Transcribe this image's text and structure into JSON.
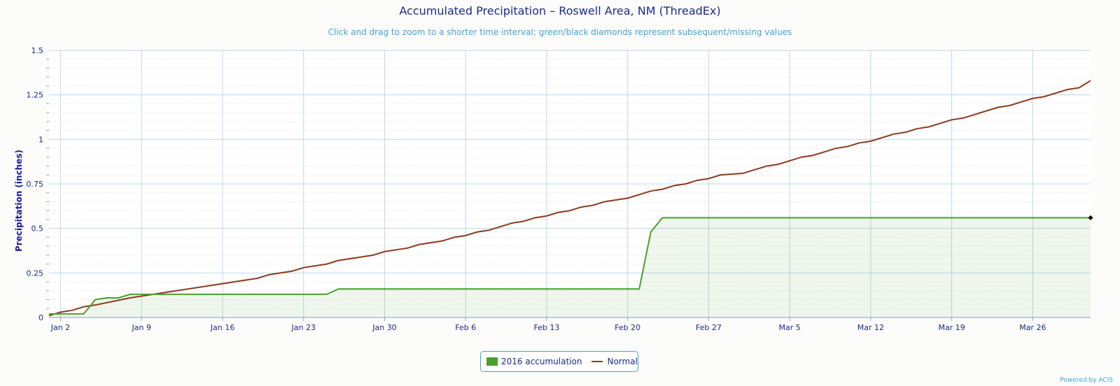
{
  "chart_data": {
    "type": "area",
    "title": "Accumulated Precipitation – Roswell Area, NM (ThreadEx)",
    "subtitle": "Click and drag to zoom to a shorter time interval; green/black diamonds represent subsequent/missing values",
    "ylabel": "Precipitation (inches)",
    "xlabel": "",
    "ylim": [
      0,
      1.5
    ],
    "yticks": [
      "0",
      "0.25",
      "0.5",
      "0.75",
      "1",
      "1.25",
      "1.5"
    ],
    "xlim": [
      "Jan 1",
      "Mar 31"
    ],
    "xtick_labels": [
      "Jan 2",
      "Jan 9",
      "Jan 16",
      "Jan 23",
      "Jan 30",
      "Feb 6",
      "Feb 13",
      "Feb 20",
      "Feb 27",
      "Mar 5",
      "Mar 12",
      "Mar 19",
      "Mar 26"
    ],
    "grid": true,
    "legend_position": "bottom-center",
    "series": [
      {
        "name": "2016 accumulation",
        "kind": "area",
        "color": "#4aa02c",
        "points": [
          [
            "Jan 1",
            0.02
          ],
          [
            "Jan 4",
            0.02
          ],
          [
            "Jan 5",
            0.1
          ],
          [
            "Jan 6",
            0.11
          ],
          [
            "Jan 7",
            0.11
          ],
          [
            "Jan 8",
            0.13
          ],
          [
            "Jan 25",
            0.13
          ],
          [
            "Jan 26",
            0.16
          ],
          [
            "Feb 21",
            0.16
          ],
          [
            "Feb 22",
            0.48
          ],
          [
            "Feb 23",
            0.56
          ],
          [
            "Mar 31",
            0.56
          ]
        ]
      },
      {
        "name": "Normal",
        "kind": "line",
        "color": "#8b3a1a",
        "points": [
          [
            "Jan 1",
            0.01
          ],
          [
            "Jan 2",
            0.03
          ],
          [
            "Jan 3",
            0.04
          ],
          [
            "Jan 4",
            0.06
          ],
          [
            "Jan 5",
            0.07
          ],
          [
            "Jan 8",
            0.11
          ],
          [
            "Jan 12",
            0.15
          ],
          [
            "Jan 16",
            0.19
          ],
          [
            "Jan 19",
            0.22
          ],
          [
            "Jan 20",
            0.24
          ],
          [
            "Jan 22",
            0.26
          ],
          [
            "Jan 23",
            0.28
          ],
          [
            "Jan 25",
            0.3
          ],
          [
            "Jan 26",
            0.32
          ],
          [
            "Jan 29",
            0.35
          ],
          [
            "Jan 30",
            0.37
          ],
          [
            "Feb 1",
            0.39
          ],
          [
            "Feb 2",
            0.41
          ],
          [
            "Feb 4",
            0.43
          ],
          [
            "Feb 5",
            0.45
          ],
          [
            "Feb 6",
            0.46
          ],
          [
            "Feb 7",
            0.48
          ],
          [
            "Feb 8",
            0.49
          ],
          [
            "Feb 10",
            0.53
          ],
          [
            "Feb 11",
            0.54
          ],
          [
            "Feb 12",
            0.56
          ],
          [
            "Feb 13",
            0.57
          ],
          [
            "Feb 14",
            0.59
          ],
          [
            "Feb 15",
            0.6
          ],
          [
            "Feb 16",
            0.62
          ],
          [
            "Feb 17",
            0.63
          ],
          [
            "Feb 18",
            0.65
          ],
          [
            "Feb 20",
            0.67
          ],
          [
            "Feb 21",
            0.69
          ],
          [
            "Feb 22",
            0.71
          ],
          [
            "Feb 23",
            0.72
          ],
          [
            "Feb 24",
            0.74
          ],
          [
            "Feb 25",
            0.75
          ],
          [
            "Feb 26",
            0.77
          ],
          [
            "Feb 27",
            0.78
          ],
          [
            "Feb 28",
            0.8
          ],
          [
            "Mar 1",
            0.81
          ],
          [
            "Mar 3",
            0.85
          ],
          [
            "Mar 4",
            0.86
          ],
          [
            "Mar 5",
            0.88
          ],
          [
            "Mar 6",
            0.9
          ],
          [
            "Mar 7",
            0.91
          ],
          [
            "Mar 8",
            0.93
          ],
          [
            "Mar 9",
            0.95
          ],
          [
            "Mar 10",
            0.96
          ],
          [
            "Mar 11",
            0.98
          ],
          [
            "Mar 12",
            0.99
          ],
          [
            "Mar 13",
            1.01
          ],
          [
            "Mar 14",
            1.03
          ],
          [
            "Mar 15",
            1.04
          ],
          [
            "Mar 16",
            1.06
          ],
          [
            "Mar 17",
            1.07
          ],
          [
            "Mar 18",
            1.09
          ],
          [
            "Mar 19",
            1.11
          ],
          [
            "Mar 20",
            1.12
          ],
          [
            "Mar 21",
            1.14
          ],
          [
            "Mar 23",
            1.18
          ],
          [
            "Mar 24",
            1.19
          ],
          [
            "Mar 25",
            1.21
          ],
          [
            "Mar 26",
            1.23
          ],
          [
            "Mar 27",
            1.24
          ],
          [
            "Mar 28",
            1.26
          ],
          [
            "Mar 29",
            1.28
          ],
          [
            "Mar 30",
            1.29
          ],
          [
            "Mar 31",
            1.33
          ]
        ]
      }
    ],
    "markers": [
      {
        "date": "Mar 31",
        "value": 0.56,
        "shape": "diamond",
        "color": "#000000"
      }
    ]
  },
  "footer": {
    "credit": "Powered by ACIS"
  }
}
